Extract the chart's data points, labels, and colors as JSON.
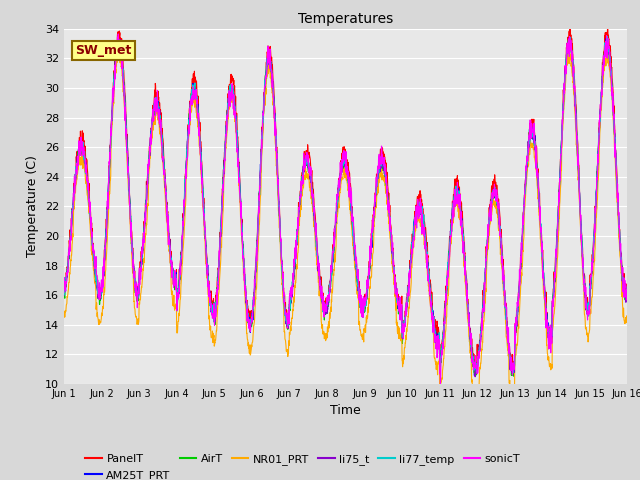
{
  "title": "Temperatures",
  "xlabel": "Time",
  "ylabel": "Temperature (C)",
  "ylim": [
    10,
    34
  ],
  "xtick_labels": [
    "Jun 1",
    "Jun 2",
    "Jun 3",
    "Jun 4",
    "Jun 5",
    "Jun 6",
    "Jun 7",
    "Jun 8",
    "Jun 9",
    "Jun 10",
    "Jun 11",
    "Jun 12",
    "Jun 13",
    "Jun 14",
    "Jun 15",
    "Jun 16"
  ],
  "series": [
    {
      "name": "PanelT",
      "color": "#ff0000",
      "lw": 0.8
    },
    {
      "name": "AM25T_PRT",
      "color": "#0000ff",
      "lw": 0.8
    },
    {
      "name": "AirT",
      "color": "#00cc00",
      "lw": 0.8
    },
    {
      "name": "NR01_PRT",
      "color": "#ffaa00",
      "lw": 0.8
    },
    {
      "name": "li75_t",
      "color": "#8800cc",
      "lw": 0.8
    },
    {
      "name": "li77_temp",
      "color": "#00cccc",
      "lw": 0.8
    },
    {
      "name": "sonicT",
      "color": "#ff00ff",
      "lw": 0.8
    }
  ],
  "annotation_text": "SW_met",
  "bg_color": "#e8e8e8",
  "grid_color": "#ffffff",
  "yticks": [
    10,
    12,
    14,
    16,
    18,
    20,
    22,
    24,
    26,
    28,
    30,
    32,
    34
  ],
  "daily_peaks": [
    26,
    33,
    29,
    30,
    30,
    32,
    25,
    25,
    25,
    22,
    23,
    23,
    27,
    33,
    33
  ],
  "daily_troughs": [
    16,
    16,
    17,
    15,
    14,
    14,
    15,
    15,
    15,
    13,
    11,
    11,
    13,
    15,
    16
  ]
}
